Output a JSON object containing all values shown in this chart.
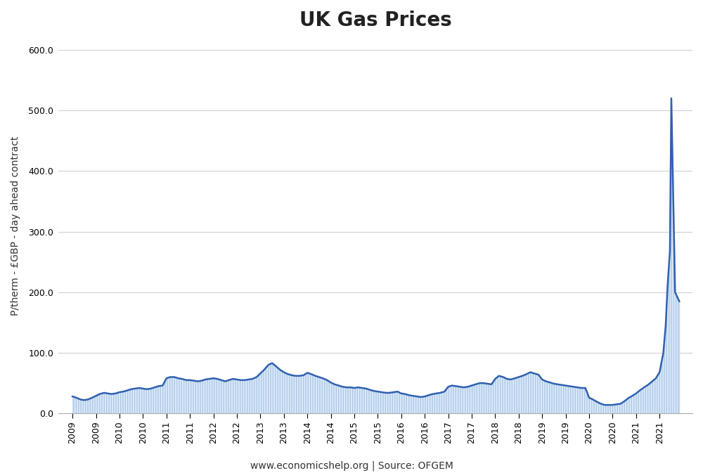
{
  "title": "UK Gas Prices",
  "ylabel": "P/therm - £GBP - day ahead contract",
  "source_text": "www.economicshelp.org | Source: OFGEM",
  "line_color": "#3060b0",
  "fill_color": "#ddeaf8",
  "hatch_color": "#aac8e8",
  "background_color": "#ffffff",
  "ylim": [
    0,
    620
  ],
  "ytick_values": [
    0,
    100,
    200,
    300,
    400,
    500,
    600
  ],
  "x_values": [
    2009.0,
    2009.08,
    2009.17,
    2009.25,
    2009.33,
    2009.42,
    2009.5,
    2009.58,
    2009.67,
    2009.75,
    2009.83,
    2009.92,
    2010.0,
    2010.08,
    2010.17,
    2010.25,
    2010.33,
    2010.42,
    2010.5,
    2010.58,
    2010.67,
    2010.75,
    2010.83,
    2010.92,
    2011.0,
    2011.08,
    2011.17,
    2011.25,
    2011.33,
    2011.42,
    2011.5,
    2011.58,
    2011.67,
    2011.75,
    2011.83,
    2011.92,
    2012.0,
    2012.08,
    2012.17,
    2012.25,
    2012.33,
    2012.42,
    2012.5,
    2012.58,
    2012.67,
    2012.75,
    2012.83,
    2012.92,
    2013.0,
    2013.08,
    2013.17,
    2013.25,
    2013.33,
    2013.42,
    2013.5,
    2013.58,
    2013.67,
    2013.75,
    2013.83,
    2013.92,
    2014.0,
    2014.08,
    2014.17,
    2014.25,
    2014.33,
    2014.42,
    2014.5,
    2014.58,
    2014.67,
    2014.75,
    2014.83,
    2014.92,
    2015.0,
    2015.08,
    2015.17,
    2015.25,
    2015.33,
    2015.42,
    2015.5,
    2015.58,
    2015.67,
    2015.75,
    2015.83,
    2015.92,
    2016.0,
    2016.08,
    2016.17,
    2016.25,
    2016.33,
    2016.42,
    2016.5,
    2016.58,
    2016.67,
    2016.75,
    2016.83,
    2016.92,
    2017.0,
    2017.08,
    2017.17,
    2017.25,
    2017.33,
    2017.42,
    2017.5,
    2017.58,
    2017.67,
    2017.75,
    2017.83,
    2017.92,
    2018.0,
    2018.08,
    2018.17,
    2018.25,
    2018.33,
    2018.42,
    2018.5,
    2018.58,
    2018.67,
    2018.75,
    2018.83,
    2018.92,
    2019.0,
    2019.08,
    2019.17,
    2019.25,
    2019.33,
    2019.42,
    2019.5,
    2019.58,
    2019.67,
    2019.75,
    2019.83,
    2019.92,
    2020.0,
    2020.08,
    2020.17,
    2020.25,
    2020.33,
    2020.42,
    2020.5,
    2020.58,
    2020.67,
    2020.75,
    2020.83,
    2020.92,
    2021.0,
    2021.08,
    2021.17,
    2021.25,
    2021.33,
    2021.42,
    2021.5,
    2021.58,
    2021.63,
    2021.67,
    2021.72,
    2021.75,
    2021.83,
    2021.92
  ],
  "y_values": [
    28,
    26,
    23,
    22,
    23,
    26,
    29,
    32,
    34,
    33,
    32,
    33,
    35,
    36,
    38,
    40,
    41,
    42,
    41,
    40,
    41,
    43,
    45,
    46,
    58,
    60,
    60,
    58,
    57,
    55,
    55,
    54,
    53,
    54,
    56,
    57,
    58,
    57,
    55,
    53,
    55,
    57,
    56,
    55,
    55,
    56,
    57,
    60,
    66,
    72,
    80,
    83,
    78,
    72,
    68,
    65,
    63,
    62,
    62,
    63,
    67,
    65,
    62,
    60,
    58,
    55,
    51,
    48,
    46,
    44,
    43,
    43,
    42,
    43,
    42,
    41,
    39,
    37,
    36,
    35,
    34,
    34,
    35,
    36,
    33,
    32,
    30,
    29,
    28,
    27,
    28,
    30,
    32,
    33,
    34,
    36,
    44,
    46,
    45,
    44,
    43,
    44,
    46,
    48,
    50,
    50,
    49,
    48,
    57,
    62,
    60,
    57,
    56,
    58,
    60,
    62,
    65,
    68,
    66,
    64,
    56,
    53,
    51,
    49,
    48,
    47,
    46,
    45,
    44,
    43,
    42,
    42,
    26,
    23,
    19,
    16,
    14,
    14,
    14,
    15,
    16,
    20,
    25,
    29,
    33,
    38,
    43,
    47,
    52,
    58,
    68,
    100,
    145,
    210,
    268,
    520,
    200,
    185
  ],
  "xtick_positions": [
    2009,
    2009.5,
    2010,
    2010.5,
    2011,
    2011.5,
    2012,
    2012.5,
    2013,
    2013.5,
    2014,
    2014.5,
    2015,
    2015.5,
    2016,
    2016.5,
    2017,
    2017.5,
    2018,
    2018.5,
    2019,
    2019.5,
    2020,
    2020.5,
    2021,
    2021.5
  ],
  "xtick_labels": [
    "2009",
    "2009",
    "2010",
    "2010",
    "2011",
    "2011",
    "2012",
    "2012",
    "2013",
    "2013",
    "2014",
    "2014",
    "2015",
    "2015",
    "2016",
    "2016",
    "2017",
    "2017",
    "2018",
    "2018",
    "2019",
    "2019",
    "2020",
    "2020",
    "2021",
    "2021"
  ],
  "grid_color": "#d0d0d0",
  "title_fontsize": 20,
  "axis_label_fontsize": 10,
  "tick_fontsize": 9,
  "source_fontsize": 10
}
